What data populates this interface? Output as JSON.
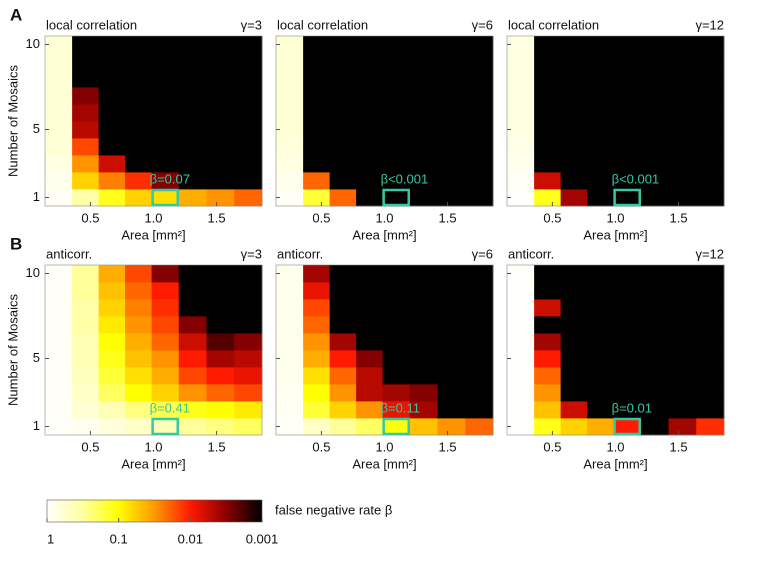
{
  "chart_data": [
    {
      "type": "heatmap",
      "panel_label": "A",
      "title_left": "local correlation",
      "title_right": "γ=3",
      "x_label": "Area [mm²]",
      "y_label": "Number of Mosaics",
      "x": [
        0.25,
        0.46,
        0.67,
        0.88,
        1.09,
        1.31,
        1.53,
        1.75
      ],
      "y": [
        1,
        2,
        3,
        4,
        5,
        6,
        7,
        8,
        9,
        10
      ],
      "z": [
        [
          0.9,
          0.35,
          0.12,
          0.06,
          0.07,
          0.04,
          0.03,
          0.02
        ],
        [
          0.8,
          0.06,
          0.025,
          0.012,
          0.003,
          0.001,
          0.001,
          0.001
        ],
        [
          0.7,
          0.03,
          0.006,
          0.001,
          0.001,
          0.001,
          0.001,
          0.001
        ],
        [
          0.6,
          0.015,
          0.001,
          0.001,
          0.001,
          0.001,
          0.001,
          0.001
        ],
        [
          0.6,
          0.005,
          0.001,
          0.001,
          0.001,
          0.001,
          0.001,
          0.001
        ],
        [
          0.6,
          0.004,
          0.001,
          0.001,
          0.001,
          0.001,
          0.001,
          0.001
        ],
        [
          0.6,
          0.003,
          0.001,
          0.001,
          0.001,
          0.001,
          0.001,
          0.001
        ],
        [
          0.6,
          0.001,
          0.001,
          0.001,
          0.001,
          0.001,
          0.001,
          0.001
        ],
        [
          0.6,
          0.001,
          0.001,
          0.001,
          0.001,
          0.001,
          0.001,
          0.001
        ],
        [
          0.6,
          0.001,
          0.001,
          0.001,
          0.001,
          0.001,
          0.001,
          0.001
        ]
      ],
      "xlim": [
        0.14,
        1.86
      ],
      "ylim": [
        0.5,
        10.5
      ],
      "xticks": [
        0.5,
        {
          "value": 1,
          "label": "1.0"
        },
        1.5
      ],
      "yticks": [
        1,
        5,
        10
      ],
      "highlight": {
        "x": 1.09,
        "y": 1,
        "label": "β=0.07",
        "color": "#33c9a4"
      }
    },
    {
      "type": "heatmap",
      "title_left": "local correlation",
      "title_right": "γ=6",
      "x_label": "Area [mm²]",
      "x": [
        0.25,
        0.46,
        0.67,
        0.88,
        1.09,
        1.31,
        1.53,
        1.75
      ],
      "y": [
        1,
        2,
        3,
        4,
        5,
        6,
        7,
        8,
        9,
        10
      ],
      "z": [
        [
          0.9,
          0.15,
          0.02,
          0.001,
          0.0005,
          0.001,
          0.001,
          0.001
        ],
        [
          0.8,
          0.02,
          0.001,
          0.001,
          0.001,
          0.001,
          0.001,
          0.001
        ],
        [
          0.7,
          0.001,
          0.001,
          0.001,
          0.001,
          0.001,
          0.001,
          0.001
        ],
        [
          0.65,
          0.001,
          0.001,
          0.001,
          0.001,
          0.001,
          0.001,
          0.001
        ],
        [
          0.6,
          0.001,
          0.001,
          0.001,
          0.001,
          0.001,
          0.001,
          0.001
        ],
        [
          0.6,
          0.001,
          0.001,
          0.001,
          0.001,
          0.001,
          0.001,
          0.001
        ],
        [
          0.6,
          0.001,
          0.001,
          0.001,
          0.001,
          0.001,
          0.001,
          0.001
        ],
        [
          0.6,
          0.001,
          0.001,
          0.001,
          0.001,
          0.001,
          0.001,
          0.001
        ],
        [
          0.6,
          0.001,
          0.001,
          0.001,
          0.001,
          0.001,
          0.001,
          0.001
        ],
        [
          0.6,
          0.001,
          0.001,
          0.001,
          0.001,
          0.001,
          0.001,
          0.001
        ]
      ],
      "xlim": [
        0.14,
        1.86
      ],
      "ylim": [
        0.5,
        10.5
      ],
      "xticks": [
        0.5,
        {
          "value": 1,
          "label": "1.0"
        },
        1.5
      ],
      "yticks": [
        1,
        5,
        10
      ],
      "highlight": {
        "x": 1.09,
        "y": 1,
        "label": "β<0.001",
        "color": "#33c9a4"
      }
    },
    {
      "type": "heatmap",
      "title_left": "local correlation",
      "title_right": "γ=12",
      "x_label": "Area [mm²]",
      "x": [
        0.25,
        0.46,
        0.67,
        0.88,
        1.09,
        1.31,
        1.53,
        1.75
      ],
      "y": [
        1,
        2,
        3,
        4,
        5,
        6,
        7,
        8,
        9,
        10
      ],
      "z": [
        [
          0.95,
          0.12,
          0.004,
          0.001,
          0.0005,
          0.001,
          0.001,
          0.001
        ],
        [
          0.9,
          0.006,
          0.001,
          0.001,
          0.001,
          0.001,
          0.001,
          0.001
        ],
        [
          0.8,
          0.001,
          0.001,
          0.001,
          0.001,
          0.001,
          0.001,
          0.001
        ],
        [
          0.75,
          0.001,
          0.001,
          0.001,
          0.001,
          0.001,
          0.001,
          0.001
        ],
        [
          0.7,
          0.001,
          0.001,
          0.001,
          0.001,
          0.001,
          0.001,
          0.001
        ],
        [
          0.7,
          0.001,
          0.001,
          0.001,
          0.001,
          0.001,
          0.001,
          0.001
        ],
        [
          0.7,
          0.001,
          0.001,
          0.001,
          0.001,
          0.001,
          0.001,
          0.001
        ],
        [
          0.7,
          0.001,
          0.001,
          0.001,
          0.001,
          0.001,
          0.001,
          0.001
        ],
        [
          0.7,
          0.001,
          0.001,
          0.001,
          0.001,
          0.001,
          0.001,
          0.001
        ],
        [
          0.7,
          0.001,
          0.001,
          0.001,
          0.001,
          0.001,
          0.001,
          0.001
        ]
      ],
      "xlim": [
        0.14,
        1.86
      ],
      "ylim": [
        0.5,
        10.5
      ],
      "xticks": [
        0.5,
        {
          "value": 1,
          "label": "1.0"
        },
        1.5
      ],
      "yticks": [
        1,
        5,
        10
      ],
      "highlight": {
        "x": 1.09,
        "y": 1,
        "label": "β<0.001",
        "color": "#33c9a4"
      }
    },
    {
      "type": "heatmap",
      "panel_label": "B",
      "title_left": "anticorr.",
      "title_right": "γ=3",
      "x_label": "Area [mm²]",
      "y_label": "Number of Mosaics",
      "x": [
        0.25,
        0.46,
        0.67,
        0.88,
        1.09,
        1.31,
        1.53,
        1.75
      ],
      "y": [
        1,
        2,
        3,
        4,
        5,
        6,
        7,
        8,
        9,
        10
      ],
      "z": [
        [
          0.95,
          0.8,
          0.65,
          0.5,
          0.41,
          0.3,
          0.25,
          0.2
        ],
        [
          0.9,
          0.6,
          0.4,
          0.25,
          0.18,
          0.12,
          0.1,
          0.08
        ],
        [
          0.9,
          0.5,
          0.2,
          0.1,
          0.06,
          0.03,
          0.02,
          0.015
        ],
        [
          0.9,
          0.45,
          0.15,
          0.07,
          0.04,
          0.015,
          0.01,
          0.008
        ],
        [
          0.9,
          0.4,
          0.12,
          0.05,
          0.03,
          0.01,
          0.004,
          0.005
        ],
        [
          0.9,
          0.4,
          0.1,
          0.04,
          0.02,
          0.006,
          0.002,
          0.003
        ],
        [
          0.9,
          0.35,
          0.08,
          0.03,
          0.015,
          0.003,
          0.001,
          0.001
        ],
        [
          0.9,
          0.35,
          0.06,
          0.025,
          0.012,
          0.001,
          0.001,
          0.001
        ],
        [
          0.9,
          0.3,
          0.05,
          0.02,
          0.01,
          0.001,
          0.001,
          0.001
        ],
        [
          0.9,
          0.3,
          0.04,
          0.015,
          0.003,
          0.001,
          0.001,
          0.001
        ]
      ],
      "xlim": [
        0.14,
        1.86
      ],
      "ylim": [
        0.5,
        10.5
      ],
      "xticks": [
        0.5,
        {
          "value": 1,
          "label": "1.0"
        },
        1.5
      ],
      "yticks": [
        1,
        5,
        10
      ],
      "highlight": {
        "x": 1.09,
        "y": 1,
        "label": "β=0.41",
        "color": "#33c9a4"
      }
    },
    {
      "type": "heatmap",
      "title_left": "anticorr.",
      "title_right": "γ=6",
      "x_label": "Area [mm²]",
      "x": [
        0.25,
        0.46,
        0.67,
        0.88,
        1.09,
        1.31,
        1.53,
        1.75
      ],
      "y": [
        1,
        2,
        3,
        4,
        5,
        6,
        7,
        8,
        9,
        10
      ],
      "z": [
        [
          0.9,
          0.5,
          0.3,
          0.2,
          0.11,
          0.05,
          0.03,
          0.02
        ],
        [
          0.9,
          0.15,
          0.06,
          0.03,
          0.008,
          0.004,
          0.001,
          0.001
        ],
        [
          0.85,
          0.1,
          0.03,
          0.005,
          0.004,
          0.003,
          0.001,
          0.001
        ],
        [
          0.8,
          0.07,
          0.02,
          0.005,
          0.001,
          0.001,
          0.001,
          0.001
        ],
        [
          0.8,
          0.04,
          0.01,
          0.003,
          0.001,
          0.001,
          0.001,
          0.001
        ],
        [
          0.8,
          0.03,
          0.004,
          0.001,
          0.001,
          0.001,
          0.001,
          0.001
        ],
        [
          0.8,
          0.02,
          0.001,
          0.001,
          0.001,
          0.001,
          0.001,
          0.001
        ],
        [
          0.8,
          0.015,
          0.001,
          0.001,
          0.001,
          0.001,
          0.001,
          0.001
        ],
        [
          0.8,
          0.008,
          0.001,
          0.001,
          0.001,
          0.001,
          0.001,
          0.001
        ],
        [
          0.8,
          0.004,
          0.001,
          0.001,
          0.001,
          0.001,
          0.001,
          0.001
        ]
      ],
      "xlim": [
        0.14,
        1.86
      ],
      "ylim": [
        0.5,
        10.5
      ],
      "xticks": [
        0.5,
        {
          "value": 1,
          "label": "1.0"
        },
        1.5
      ],
      "yticks": [
        1,
        5,
        10
      ],
      "highlight": {
        "x": 1.09,
        "y": 1,
        "label": "β=0.11",
        "color": "#33c9a4"
      }
    },
    {
      "type": "heatmap",
      "title_left": "anticorr.",
      "title_right": "γ=12",
      "x_label": "Area [mm²]",
      "x": [
        0.25,
        0.46,
        0.67,
        0.88,
        1.09,
        1.31,
        1.53,
        1.75
      ],
      "y": [
        1,
        2,
        3,
        4,
        5,
        6,
        7,
        8,
        9,
        10
      ],
      "z": [
        [
          0.95,
          0.12,
          0.06,
          0.04,
          0.01,
          0.001,
          0.004,
          0.012
        ],
        [
          0.95,
          0.05,
          0.006,
          0.001,
          0.001,
          0.001,
          0.001,
          0.001
        ],
        [
          0.95,
          0.03,
          0.001,
          0.001,
          0.001,
          0.001,
          0.001,
          0.001
        ],
        [
          0.95,
          0.02,
          0.001,
          0.001,
          0.001,
          0.001,
          0.001,
          0.001
        ],
        [
          0.95,
          0.01,
          0.001,
          0.001,
          0.001,
          0.001,
          0.001,
          0.001
        ],
        [
          0.95,
          0.004,
          0.001,
          0.001,
          0.001,
          0.001,
          0.001,
          0.001
        ],
        [
          0.95,
          0.001,
          0.001,
          0.001,
          0.001,
          0.001,
          0.001,
          0.001
        ],
        [
          0.95,
          0.006,
          0.001,
          0.001,
          0.001,
          0.001,
          0.001,
          0.001
        ],
        [
          0.95,
          0.001,
          0.001,
          0.001,
          0.001,
          0.001,
          0.001,
          0.001
        ],
        [
          0.95,
          0.001,
          0.001,
          0.001,
          0.001,
          0.001,
          0.001,
          0.001
        ]
      ],
      "xlim": [
        0.14,
        1.86
      ],
      "ylim": [
        0.5,
        10.5
      ],
      "xticks": [
        0.5,
        {
          "value": 1,
          "label": "1.0"
        },
        1.5
      ],
      "yticks": [
        1,
        5,
        10
      ],
      "highlight": {
        "x": 1.09,
        "y": 1,
        "label": "β=0.01",
        "color": "#33c9a4"
      }
    }
  ],
  "colorbar": {
    "label": "false negative rate β",
    "log": true,
    "lim": [
      1,
      0.001
    ],
    "ticks": [
      1,
      0.1,
      0.01,
      0.001
    ],
    "colors": [
      "#ffffff",
      "#ffffa0",
      "#ffff00",
      "#ff9900",
      "#ff1a00",
      "#8b0000",
      "#000000"
    ]
  }
}
